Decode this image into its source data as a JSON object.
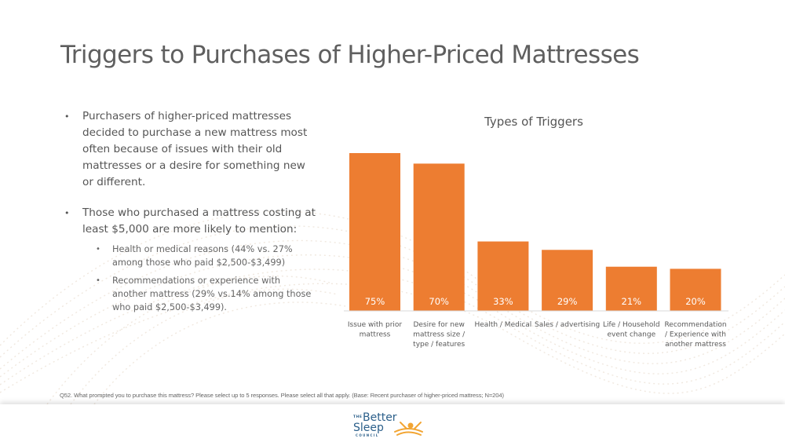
{
  "slide": {
    "title": "Triggers to Purchases of Higher-Priced Mattresses",
    "bullets": [
      {
        "text": "Purchasers of higher-priced mattresses decided to purchase a new mattress most often because of issues with their old mattresses or a desire for something new or different."
      },
      {
        "text": "Those who purchased a mattress costing at least $5,000 are more likely to mention:",
        "sub": [
          "Health or medical reasons (44% vs. 27% among those who paid $2,500-$3,499)",
          "Recommendations or experience with another mattress (29% vs.14% among those who paid $2,500-$3,499)."
        ]
      }
    ],
    "footnote": "Q52. What prompted you to purchase this mattress? Please select up to 5 responses. Please select all that apply. (Base: Recent purchaser of higher-priced mattress; N=204)",
    "logo": {
      "line1": "THE",
      "line2": "Better",
      "line3": "Sleep",
      "line4": "COUNCIL"
    }
  },
  "colors": {
    "bar": "#ED7D31",
    "title": "#5f5f5f",
    "text": "#555555",
    "logo_blue": "#2b5f8a",
    "logo_orange": "#f2a533"
  },
  "chart_data": {
    "type": "bar",
    "title": "Types of Triggers",
    "categories": [
      [
        "Issue with prior",
        "mattress"
      ],
      [
        "Desire for new",
        "mattress size /",
        "type / features"
      ],
      [
        "Health / Medical"
      ],
      [
        "Sales / advertising"
      ],
      [
        "Life / Household",
        "event change"
      ],
      [
        "Recommendation",
        "/ Experience with",
        "another mattress"
      ]
    ],
    "values": [
      75,
      70,
      33,
      29,
      21,
      20
    ],
    "value_labels": [
      "75%",
      "70%",
      "33%",
      "29%",
      "21%",
      "20%"
    ],
    "xlabel": "",
    "ylabel": "",
    "ylim": [
      0,
      80
    ],
    "grid": false,
    "legend": "none"
  }
}
